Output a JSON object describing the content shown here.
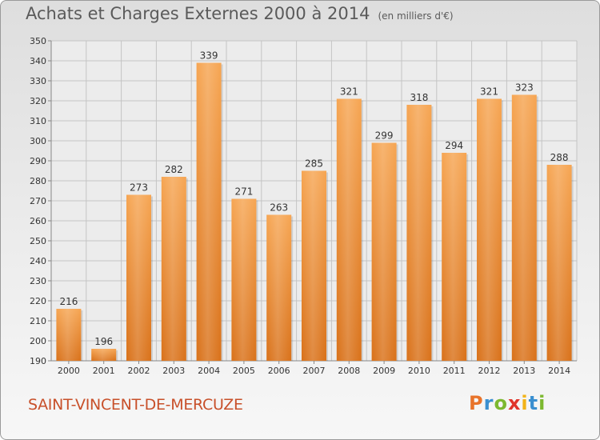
{
  "header": {
    "title": "Achats et Charges Externes 2000 à 2014",
    "unit": "(en milliers d'€)"
  },
  "footer": {
    "commune": "SAINT-VINCENT-DE-MERCUZE",
    "logo": {
      "letters": [
        "P",
        "r",
        "o",
        "x",
        "i",
        "t",
        "i"
      ]
    }
  },
  "colors": {
    "bar_top": "#f6a552",
    "bar_bottom": "#d97119",
    "grid": "#c4c4c4",
    "axis_text": "#333333",
    "title_text": "#5a5a5a",
    "commune_text": "#c8502a"
  },
  "chart_data": {
    "type": "bar",
    "title": "Achats et Charges Externes 2000 à 2014",
    "subtitle": "(en milliers d'€)",
    "xlabel": "",
    "ylabel": "",
    "ylim": [
      190,
      350
    ],
    "ytick_step": 10,
    "grid": true,
    "categories": [
      "2000",
      "2001",
      "2002",
      "2003",
      "2004",
      "2005",
      "2006",
      "2007",
      "2008",
      "2009",
      "2010",
      "2011",
      "2012",
      "2013",
      "2014"
    ],
    "values": [
      216,
      196,
      273,
      282,
      339,
      271,
      263,
      285,
      321,
      299,
      318,
      294,
      321,
      323,
      288
    ]
  }
}
